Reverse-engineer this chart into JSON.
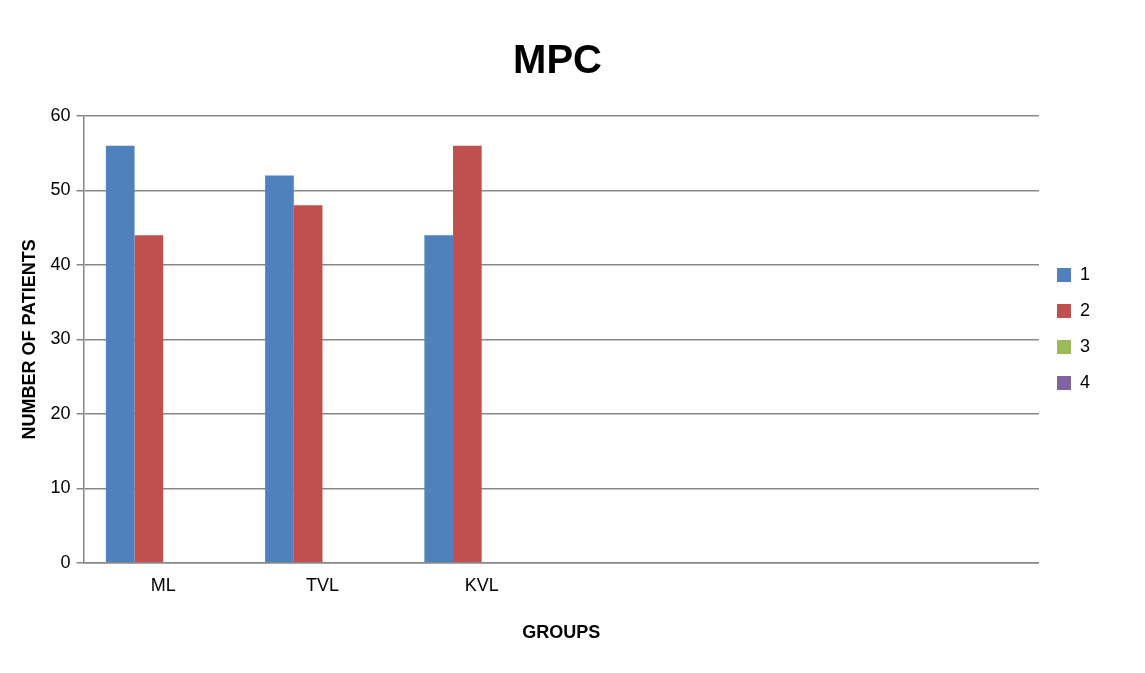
{
  "chart_data": {
    "type": "bar",
    "title": "MPC",
    "xlabel": "GROUPS",
    "ylabel": "NUMBER OF PATIENTS",
    "categories": [
      "ML",
      "TVL",
      "KVL",
      null,
      null,
      null
    ],
    "series": [
      {
        "name": "1",
        "color": "#4f81bd",
        "values": [
          56,
          52,
          44,
          null,
          null,
          null
        ]
      },
      {
        "name": "2",
        "color": "#c0504d",
        "values": [
          44,
          48,
          56,
          null,
          null,
          null
        ]
      },
      {
        "name": "3",
        "color": "#9bbb59",
        "values": [
          null,
          null,
          null,
          null,
          null,
          null
        ]
      },
      {
        "name": "4",
        "color": "#8064a2",
        "values": [
          null,
          null,
          null,
          null,
          null,
          null
        ]
      }
    ],
    "ylim": [
      0,
      60
    ],
    "yticks": [
      0,
      10,
      20,
      30,
      40,
      50,
      60
    ],
    "grid": "y",
    "legend": "right"
  }
}
